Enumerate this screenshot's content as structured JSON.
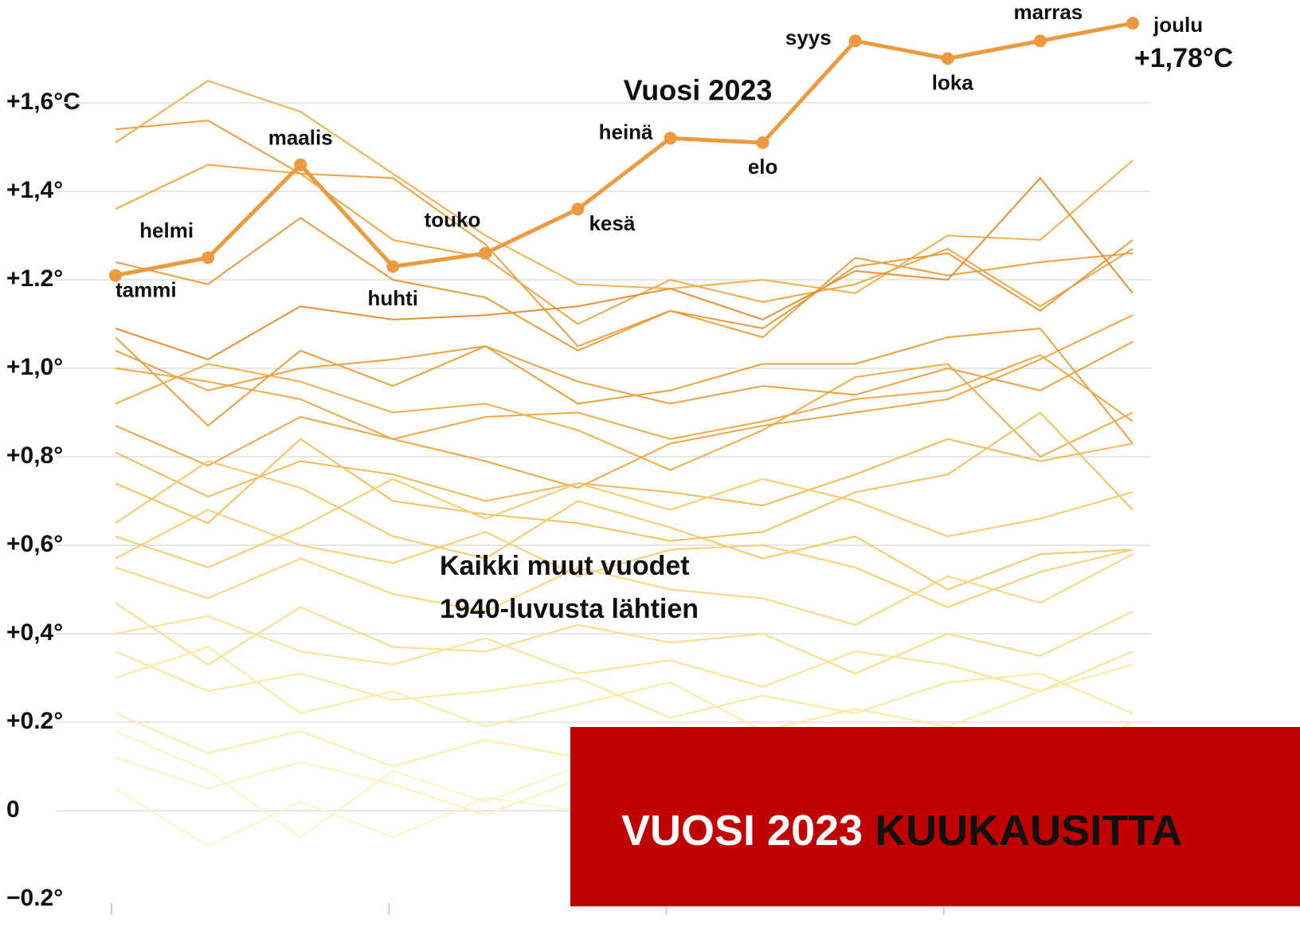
{
  "chart_data": {
    "type": "line",
    "categories": [
      "tammi",
      "helmi",
      "maalis",
      "huhti",
      "touko",
      "kesä",
      "heinä",
      "elo",
      "syys",
      "loka",
      "marras",
      "joulu"
    ],
    "series": [
      {
        "name": "Vuosi 2023",
        "color": "#ec9a40",
        "values": [
          1.21,
          1.25,
          1.46,
          1.23,
          1.26,
          1.36,
          1.52,
          1.51,
          1.74,
          1.7,
          1.74,
          1.78
        ],
        "value_labels": [
          null,
          null,
          null,
          null,
          null,
          null,
          null,
          null,
          null,
          null,
          null,
          "+1,78°C"
        ]
      }
    ],
    "background_series": [
      {
        "color": "#eba044",
        "values": [
          1.54,
          1.56,
          1.44,
          1.43,
          1.28,
          1.05,
          1.13,
          1.07,
          1.25,
          1.21,
          1.24,
          1.26
        ]
      },
      {
        "color": "#f0b050",
        "values": [
          1.51,
          1.65,
          1.58,
          1.44,
          1.3,
          1.19,
          1.18,
          1.2,
          1.17,
          1.3,
          1.29,
          1.47
        ]
      },
      {
        "color": "#eda848",
        "values": [
          1.36,
          1.46,
          1.44,
          1.29,
          1.25,
          1.1,
          1.2,
          1.15,
          1.19,
          1.27,
          1.14,
          1.27
        ]
      },
      {
        "color": "#e89a3e",
        "values": [
          1.24,
          1.19,
          1.34,
          1.2,
          1.16,
          1.04,
          1.13,
          1.09,
          1.23,
          1.26,
          1.13,
          1.29
        ]
      },
      {
        "color": "#e39038",
        "values": [
          1.09,
          1.02,
          1.14,
          1.11,
          1.12,
          1.14,
          1.18,
          1.11,
          1.22,
          1.2,
          1.43,
          1.17
        ]
      },
      {
        "color": "#eaa040",
        "values": [
          1.07,
          0.87,
          1.04,
          0.96,
          1.05,
          0.92,
          0.95,
          1.01,
          1.01,
          1.07,
          1.09,
          0.83
        ]
      },
      {
        "color": "#eda84a",
        "values": [
          1.0,
          0.97,
          0.93,
          0.84,
          0.89,
          0.9,
          0.84,
          0.88,
          0.93,
          0.95,
          1.03,
          0.88
        ]
      },
      {
        "color": "#efae4e",
        "values": [
          0.92,
          1.01,
          0.97,
          0.9,
          0.92,
          0.86,
          0.77,
          0.86,
          0.98,
          1.01,
          0.8,
          0.9
        ]
      },
      {
        "color": "#eca646",
        "values": [
          0.87,
          0.78,
          0.89,
          0.84,
          0.79,
          0.73,
          0.83,
          0.87,
          0.9,
          0.93,
          1.02,
          1.12
        ]
      },
      {
        "color": "#f1b85a",
        "values": [
          0.81,
          0.71,
          0.79,
          0.76,
          0.7,
          0.74,
          0.72,
          0.69,
          0.76,
          0.84,
          0.79,
          0.83
        ]
      },
      {
        "color": "#f3c060",
        "values": [
          0.74,
          0.65,
          0.84,
          0.7,
          0.67,
          0.65,
          0.61,
          0.63,
          0.72,
          0.76,
          0.9,
          0.68
        ]
      },
      {
        "color": "#f4c868",
        "values": [
          0.65,
          0.79,
          0.73,
          0.62,
          0.57,
          0.7,
          0.64,
          0.57,
          0.62,
          0.5,
          0.58,
          0.59
        ]
      },
      {
        "color": "#f6ce72",
        "values": [
          0.57,
          0.68,
          0.6,
          0.56,
          0.63,
          0.53,
          0.59,
          0.6,
          0.55,
          0.46,
          0.54,
          0.59
        ]
      },
      {
        "color": "#f8d67e",
        "values": [
          0.55,
          0.48,
          0.57,
          0.49,
          0.45,
          0.55,
          0.5,
          0.48,
          0.42,
          0.53,
          0.47,
          0.58
        ]
      },
      {
        "color": "#f9dc88",
        "values": [
          0.47,
          0.33,
          0.46,
          0.37,
          0.36,
          0.42,
          0.38,
          0.4,
          0.31,
          0.4,
          0.35,
          0.45
        ]
      },
      {
        "color": "#fae290",
        "values": [
          0.4,
          0.44,
          0.36,
          0.33,
          0.39,
          0.31,
          0.34,
          0.28,
          0.36,
          0.33,
          0.27,
          0.36
        ]
      },
      {
        "color": "#fbe69a",
        "values": [
          0.36,
          0.27,
          0.31,
          0.25,
          0.27,
          0.3,
          0.21,
          0.26,
          0.22,
          0.29,
          0.31,
          0.22
        ]
      },
      {
        "color": "#fce9a2",
        "values": [
          0.3,
          0.37,
          0.22,
          0.27,
          0.19,
          0.24,
          0.29,
          0.18,
          0.23,
          0.19,
          0.27,
          0.33
        ]
      },
      {
        "color": "#fdecaa",
        "values": [
          0.22,
          0.13,
          0.18,
          0.1,
          0.16,
          0.12,
          0.15,
          0.13,
          0.1,
          0.16,
          0.1,
          0.2
        ]
      },
      {
        "color": "#fdf0b8",
        "values": [
          0.12,
          0.05,
          0.11,
          0.06,
          -0.01,
          0.07,
          0.04,
          0.08,
          0.05,
          0.1,
          0.03,
          0.12
        ]
      },
      {
        "color": "#fef3c4",
        "values": [
          0.05,
          -0.08,
          0.02,
          -0.06,
          0.03,
          0.0,
          0.06,
          0.04,
          0.09,
          0.01,
          0.06,
          0.14
        ]
      },
      {
        "color": "#fef2c0",
        "values": [
          0.18,
          0.09,
          -0.06,
          0.09,
          0.02,
          0.1,
          0.08,
          0.14,
          0.03,
          0.07,
          0.11,
          0.06
        ]
      },
      {
        "color": "#f5cb6e",
        "values": [
          0.62,
          0.55,
          0.64,
          0.75,
          0.66,
          0.74,
          0.68,
          0.75,
          0.7,
          0.62,
          0.66,
          0.72
        ]
      },
      {
        "color": "#eaa244",
        "values": [
          1.04,
          0.95,
          1.0,
          1.02,
          1.05,
          0.97,
          0.92,
          0.96,
          0.94,
          1.0,
          0.95,
          1.06
        ]
      }
    ],
    "ylim": [
      -0.2,
      1.8
    ],
    "yticks": [
      {
        "value": 1.6,
        "label": "+1,6°C"
      },
      {
        "value": 1.4,
        "label": "+1,4°"
      },
      {
        "value": 1.2,
        "label": "+1.2°"
      },
      {
        "value": 1.0,
        "label": "+1,0°"
      },
      {
        "value": 0.8,
        "label": "+0,8°"
      },
      {
        "value": 0.6,
        "label": "+0,6°"
      },
      {
        "value": 0.4,
        "label": "+0,4°"
      },
      {
        "value": 0.2,
        "label": "+0.2°"
      },
      0,
      {
        "value": -0.2,
        "label": "−0.2°"
      }
    ],
    "grid": true,
    "annotations": [
      "Kaikki muut vuodet",
      "1940-luvusta lähtien"
    ]
  },
  "banner": {
    "white": "VUOSI 2023",
    "black": "KUUKAUSITTA"
  }
}
